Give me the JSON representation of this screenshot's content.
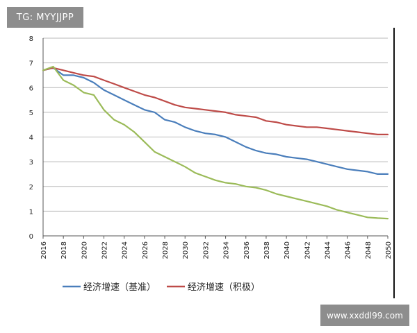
{
  "watermark_top": "TG: MYYJJPP",
  "watermark_bottom": "www.xxddl99.com",
  "chart_data": {
    "type": "line",
    "title": "",
    "xlabel": "",
    "ylabel": "",
    "xlim": [
      2016,
      2050
    ],
    "ylim": [
      0,
      8
    ],
    "grid": true,
    "legend_position": "bottom",
    "x_ticks": [
      "2016",
      "2018",
      "2020",
      "2022",
      "2024",
      "2026",
      "2028",
      "2030",
      "2032",
      "2034",
      "2036",
      "2038",
      "2040",
      "2042",
      "2044",
      "2046",
      "2048",
      "2050"
    ],
    "y_ticks": [
      "0",
      "1",
      "2",
      "3",
      "4",
      "5",
      "6",
      "7",
      "8"
    ],
    "series": [
      {
        "name": "经济增速（基准）",
        "color": "#4a7ebb",
        "x": [
          2016,
          2017,
          2018,
          2019,
          2020,
          2021,
          2022,
          2023,
          2024,
          2025,
          2026,
          2027,
          2028,
          2029,
          2030,
          2031,
          2032,
          2033,
          2034,
          2035,
          2036,
          2037,
          2038,
          2039,
          2040,
          2041,
          2042,
          2043,
          2044,
          2045,
          2046,
          2047,
          2048,
          2049,
          2050
        ],
        "values": [
          6.7,
          6.8,
          6.5,
          6.5,
          6.4,
          6.2,
          5.9,
          5.7,
          5.5,
          5.3,
          5.1,
          5.0,
          4.7,
          4.6,
          4.4,
          4.25,
          4.15,
          4.1,
          4.0,
          3.8,
          3.6,
          3.45,
          3.35,
          3.3,
          3.2,
          3.15,
          3.1,
          3.0,
          2.9,
          2.8,
          2.7,
          2.65,
          2.6,
          2.5,
          2.5
        ]
      },
      {
        "name": "经济增速（积极）",
        "color": "#be4b48",
        "x": [
          2016,
          2017,
          2018,
          2019,
          2020,
          2021,
          2022,
          2023,
          2024,
          2025,
          2026,
          2027,
          2028,
          2029,
          2030,
          2031,
          2032,
          2033,
          2034,
          2035,
          2036,
          2037,
          2038,
          2039,
          2040,
          2041,
          2042,
          2043,
          2044,
          2045,
          2046,
          2047,
          2048,
          2049,
          2050
        ],
        "values": [
          6.7,
          6.8,
          6.7,
          6.6,
          6.5,
          6.45,
          6.3,
          6.15,
          6.0,
          5.85,
          5.7,
          5.6,
          5.45,
          5.3,
          5.2,
          5.15,
          5.1,
          5.05,
          5.0,
          4.9,
          4.85,
          4.8,
          4.65,
          4.6,
          4.5,
          4.45,
          4.4,
          4.4,
          4.35,
          4.3,
          4.25,
          4.2,
          4.15,
          4.1,
          4.1
        ]
      },
      {
        "name": "",
        "color": "#9bbb59",
        "x": [
          2016,
          2017,
          2018,
          2019,
          2020,
          2021,
          2022,
          2023,
          2024,
          2025,
          2026,
          2027,
          2028,
          2029,
          2030,
          2031,
          2032,
          2033,
          2034,
          2035,
          2036,
          2037,
          2038,
          2039,
          2040,
          2041,
          2042,
          2043,
          2044,
          2045,
          2046,
          2047,
          2048,
          2049,
          2050
        ],
        "values": [
          6.7,
          6.85,
          6.3,
          6.1,
          5.8,
          5.7,
          5.1,
          4.7,
          4.5,
          4.2,
          3.8,
          3.4,
          3.2,
          3.0,
          2.8,
          2.55,
          2.4,
          2.25,
          2.15,
          2.1,
          2.0,
          1.95,
          1.85,
          1.7,
          1.6,
          1.5,
          1.4,
          1.3,
          1.2,
          1.05,
          0.95,
          0.85,
          0.75,
          0.72,
          0.7
        ]
      }
    ]
  }
}
